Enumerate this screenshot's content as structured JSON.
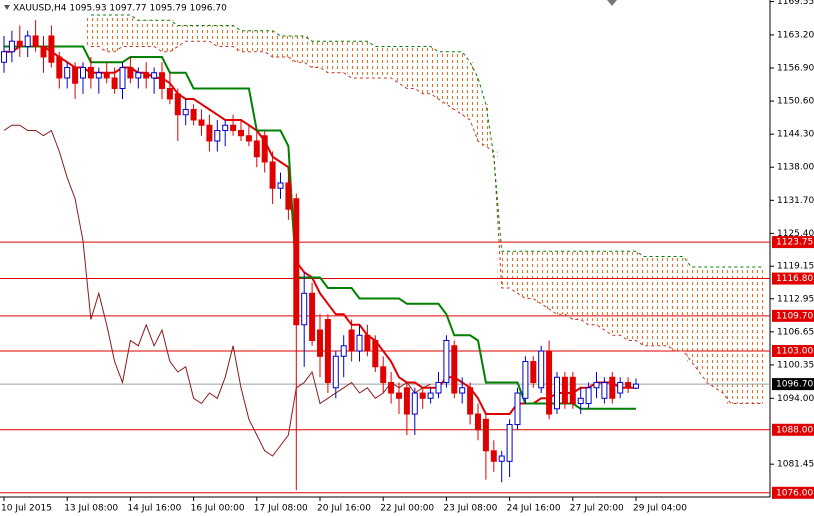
{
  "chart_data": {
    "type": "candlestick",
    "title": "XAUUSD,H4 1095.93 1097.77 1095.79 1096.70",
    "categories": [
      "10 Jul 2015",
      null,
      null,
      null,
      null,
      null,
      null,
      null,
      "13 Jul 08:00",
      null,
      null,
      null,
      null,
      null,
      null,
      null,
      "14 Jul 16:00",
      null,
      null,
      null,
      null,
      null,
      null,
      null,
      "16 Jul 00:00",
      null,
      null,
      null,
      null,
      null,
      null,
      null,
      "17 Jul 08:00",
      null,
      null,
      null,
      null,
      null,
      null,
      null,
      "20 Jul 16:00",
      null,
      null,
      null,
      null,
      null,
      null,
      null,
      "22 Jul 00:00",
      null,
      null,
      null,
      null,
      null,
      null,
      null,
      "23 Jul 08:00",
      null,
      null,
      null,
      null,
      null,
      null,
      null,
      "24 Jul 16:00",
      null,
      null,
      null,
      null,
      null,
      null,
      null,
      "27 Jul 20:00",
      null,
      null,
      null,
      null,
      null,
      null,
      null,
      "29 Jul 04:00",
      null,
      null,
      null,
      null,
      null,
      null,
      null,
      null,
      null,
      null,
      null,
      null,
      null,
      null,
      null,
      null
    ],
    "open": [
      1158,
      1160,
      1162,
      1161,
      1163,
      1161,
      1163,
      1159,
      1155,
      1157,
      1155,
      1157,
      1155,
      1156,
      1155,
      1153,
      1157,
      1155,
      1156,
      1155,
      1156,
      1153,
      1152,
      1148,
      1149,
      1147,
      1146,
      1143,
      1145,
      1146,
      1145,
      1144,
      1143,
      1144,
      1139,
      1134,
      1135,
      1132,
      1108,
      1114,
      1107,
      1109,
      1096,
      1102,
      1107,
      1103,
      1106,
      1105,
      1100,
      1097,
      1095,
      1096,
      1091,
      1095,
      1094,
      1095,
      1097,
      1104,
      1095,
      1096,
      1091,
      1090,
      1084,
      1082,
      1082,
      1089,
      1094,
      1101,
      1096,
      1103,
      1092,
      1098,
      1098,
      1093,
      1093,
      1096,
      1094,
      1098,
      1095,
      1097,
      1095.93,
      null,
      null,
      null,
      null,
      null,
      null,
      null,
      null,
      null,
      null,
      null,
      null,
      null,
      null,
      null,
      null
    ],
    "high": [
      1163,
      1164,
      1165,
      1164,
      1166,
      1163,
      1165,
      1160,
      1158,
      1158,
      1158,
      1159,
      1157,
      1158,
      1157,
      1158,
      1159,
      1157,
      1158,
      1157,
      1158,
      1156,
      1153,
      1151,
      1150,
      1149,
      1148,
      1147,
      1147,
      1148,
      1147,
      1146,
      1145,
      1145,
      1141,
      1137,
      1137,
      1133,
      1118,
      1116,
      1110,
      1110,
      1103,
      1106,
      1109,
      1108,
      1108,
      1106,
      1102,
      1099,
      1097,
      1097,
      1096,
      1096,
      1096,
      1099,
      1106,
      1105,
      1098,
      1097,
      1093,
      1091,
      1086,
      1084,
      1090,
      1096,
      1102,
      1102,
      1104,
      1105,
      1099,
      1099,
      1099,
      1096,
      1097,
      1099,
      1098,
      1099,
      1098,
      1098,
      1097.77,
      null,
      null,
      null,
      null,
      null,
      null,
      null,
      null,
      null,
      null,
      null,
      null,
      null,
      null,
      null,
      null
    ],
    "low": [
      1156,
      1158,
      1159,
      1159,
      1160,
      1156,
      1157,
      1153,
      1153,
      1151,
      1152,
      1153,
      1152,
      1154,
      1152,
      1151,
      1154,
      1153,
      1153,
      1152,
      1151,
      1150,
      1143,
      1146,
      1146,
      1144,
      1141,
      1141,
      1142,
      1144,
      1143,
      1142,
      1138,
      1137,
      1131,
      1132,
      1128,
      1076.5,
      1100,
      1104,
      1098,
      1095,
      1094,
      1098,
      1101,
      1101,
      1102,
      1099,
      1095,
      1093,
      1091,
      1087,
      1087,
      1092,
      1093,
      1094,
      1096,
      1094,
      1093,
      1089,
      1086,
      1078.5,
      1080,
      1078,
      1079,
      1088,
      1093,
      1096,
      1095,
      1090,
      1091,
      1092,
      1092,
      1091,
      1092,
      1094,
      1093,
      1093,
      1094,
      1095,
      1095.79,
      null,
      null,
      null,
      null,
      null,
      null,
      null,
      null,
      null,
      null,
      null,
      null,
      null,
      null,
      null,
      null
    ],
    "close": [
      1160,
      1162,
      1161,
      1163,
      1161,
      1159,
      1158,
      1155,
      1157,
      1154,
      1157,
      1155,
      1156,
      1155,
      1153,
      1157,
      1155,
      1156,
      1155,
      1156,
      1153,
      1151,
      1148,
      1149,
      1147,
      1146,
      1143,
      1145,
      1146,
      1145,
      1144,
      1143,
      1140,
      1139,
      1134,
      1135,
      1130,
      1108,
      1114,
      1105,
      1102,
      1097,
      1102,
      1104,
      1103,
      1106,
      1103,
      1100,
      1097,
      1095,
      1094,
      1091,
      1095,
      1094,
      1095,
      1097,
      1105,
      1095,
      1096,
      1091,
      1088,
      1084,
      1082,
      1083,
      1089,
      1095,
      1101,
      1097,
      1103,
      1091,
      1098,
      1093,
      1093,
      1094,
      1096,
      1097,
      1097,
      1094,
      1097,
      1096,
      1096.7,
      null,
      null,
      null,
      null,
      null,
      null,
      null,
      null,
      null,
      null,
      null,
      null,
      null,
      null,
      null,
      null
    ],
    "up_color": "#0000cd",
    "down_color": "#e00000",
    "lines": [
      {
        "color": "#e00000",
        "width": 2,
        "dash": false,
        "values": [
          1160,
          1160,
          1161,
          1161,
          1161,
          1161,
          1160,
          1159,
          1158,
          1157,
          1157,
          1156,
          1156,
          1156,
          1156,
          1157,
          1157,
          1156,
          1156,
          1155,
          1155,
          1154,
          1152,
          1151,
          1151,
          1150,
          1149,
          1148,
          1147,
          1147,
          1147,
          1146,
          1145,
          1143,
          1140,
          1139,
          1138,
          1120,
          1118,
          1117,
          1114,
          1112,
          1110,
          1110,
          1108,
          1108,
          1106,
          1105,
          1103,
          1101,
          1098,
          1097,
          1097,
          1096,
          1096,
          1096,
          1098,
          1098,
          1097,
          1096,
          1094,
          1091,
          1091,
          1091,
          1091,
          1093,
          1093,
          1093,
          1094,
          1094,
          1095,
          1095,
          1095,
          1096,
          1096,
          1097,
          1097,
          1097,
          1096,
          1096,
          1096,
          null,
          null,
          null,
          null,
          null,
          null,
          null,
          null,
          null,
          null,
          null,
          null,
          null,
          null,
          null,
          null
        ]
      },
      {
        "color": "#008000",
        "width": 2,
        "dash": false,
        "values": [
          1161,
          1161,
          1161,
          1161,
          1161,
          1161,
          1161,
          1161,
          1161,
          1161,
          1161,
          1158,
          1158,
          1158,
          1158,
          1158,
          1159,
          1159,
          1159,
          1159,
          1159,
          1156,
          1156,
          1156,
          1153,
          1153,
          1153,
          1153,
          1153,
          1153,
          1153,
          1153,
          1145,
          1145,
          1145,
          1145,
          1142,
          1117,
          1117,
          1117,
          1117,
          1115,
          1115,
          1115,
          1115,
          1113,
          1113,
          1113,
          1113,
          1113,
          1113,
          1112,
          1112,
          1112,
          1112,
          1112,
          1110,
          1106,
          1106,
          1106,
          1105,
          1097,
          1097,
          1097,
          1097,
          1097,
          1093,
          1093,
          1093,
          1093,
          1093,
          1093,
          1093,
          1092,
          1092,
          1092,
          1092,
          1092,
          1092,
          1092,
          1092,
          null,
          null,
          null,
          null,
          null,
          null,
          null,
          null,
          null,
          null,
          null,
          null,
          null,
          null,
          null,
          null
        ]
      },
      {
        "color": "#8b1a1a",
        "width": 1,
        "dash": false,
        "values": [
          1145,
          1146,
          1146,
          1145,
          1145,
          1144,
          1145,
          1141,
          1136,
          1132,
          1124,
          1109,
          1114,
          1108,
          1101,
          1097,
          1105,
          1104,
          1108,
          1104,
          1107,
          1101,
          1099,
          1100,
          1094,
          1093,
          1095,
          1094,
          1098,
          1104,
          1096,
          1090,
          1087,
          1084,
          1083,
          1085,
          1087,
          1096,
          1097,
          1099,
          1093,
          1094,
          1095,
          1096,
          1097,
          1095,
          1096,
          1094,
          1095,
          1097,
          1096,
          1097,
          1095,
          1096,
          1096.7,
          null,
          null,
          null,
          null,
          null,
          null,
          null,
          null,
          null,
          null,
          null,
          null,
          null,
          null,
          null,
          null,
          null,
          null,
          null,
          null,
          null,
          null,
          null,
          null,
          null,
          null,
          null,
          null,
          null,
          null,
          null,
          null,
          null,
          null,
          null,
          null,
          null
        ]
      },
      {
        "color": "#c0392b",
        "width": 1,
        "dash": true,
        "values": [
          null,
          null,
          null,
          null,
          null,
          null,
          null,
          null,
          null,
          null,
          null,
          1161,
          1161,
          1160,
          1160,
          1161,
          1161,
          1161,
          1161,
          1161,
          1160,
          1160,
          1161,
          1162,
          1162,
          1162,
          1162,
          1161,
          1161,
          1161,
          1160,
          1160,
          1160,
          1160,
          1159,
          1159,
          1159,
          1158,
          1158,
          1157,
          1157,
          1156,
          1156,
          1156,
          1155,
          1155,
          1155,
          1155,
          1155,
          1155,
          1154,
          1153,
          1153,
          1152,
          1152,
          1151,
          1150,
          1149,
          1148,
          1147,
          1143,
          1142,
          1141,
          1115,
          1115,
          1114,
          1113,
          1113,
          1112,
          1111,
          1110,
          1110,
          1109,
          1109,
          1108,
          1108,
          1107,
          1106,
          1106,
          1105,
          1105,
          1104,
          1104,
          1104,
          1104,
          1103,
          1103,
          1101,
          1099,
          1097,
          1096,
          1095,
          1093,
          1093,
          1093,
          1093,
          1093
        ]
      },
      {
        "color": "#008000",
        "width": 1,
        "dash": true,
        "values": [
          null,
          null,
          null,
          null,
          null,
          null,
          null,
          null,
          null,
          null,
          null,
          1167,
          1167,
          1167,
          1167,
          1167,
          1167,
          1166,
          1166,
          1166,
          1166,
          1166,
          1165,
          1165,
          1165,
          1165,
          1165,
          1165,
          1165,
          1165,
          1164,
          1164,
          1164,
          1164,
          1164,
          1163,
          1163,
          1163,
          1163,
          1162,
          1162,
          1162,
          1162,
          1162,
          1162,
          1162,
          1162,
          1161,
          1161,
          1161,
          1161,
          1161,
          1161,
          1161,
          1161,
          1160,
          1160,
          1160,
          1160,
          1158,
          1155,
          1150,
          1140,
          1122,
          1122,
          1122,
          1122,
          1122,
          1122,
          1122,
          1122,
          1122,
          1122,
          1122,
          1122,
          1122,
          1122,
          1122,
          1122,
          1122,
          1122,
          1121,
          1121,
          1121,
          1121,
          1121,
          1121,
          1119,
          1119,
          1119,
          1119,
          1119,
          1119,
          1119,
          1119,
          1119,
          1119
        ]
      }
    ],
    "cloud_color": "#f26b1d",
    "levels": [
      1123.75,
      {
        "value": 1116.8,
        "label": "1116.80"
      },
      {
        "value": 1109.7,
        "label": "1109.70"
      },
      {
        "value": 1103.0,
        "label": "1103.00"
      },
      {
        "value": 1088.0,
        "label": "1088.00"
      },
      {
        "value": 1076.0,
        "label": "1076.00"
      }
    ],
    "level_color": "#e00000",
    "last": {
      "value": 1096.7,
      "label": "1096.70"
    },
    "ylim": [
      1075.2,
      1169.85
    ],
    "yticks": [
      1169.55,
      {
        "value": 1163.2,
        "label": "1163.20"
      },
      {
        "value": 1156.9,
        "label": "1156.90"
      },
      {
        "value": 1150.6,
        "label": "1150.60"
      },
      {
        "value": 1144.3,
        "label": "1144.30"
      },
      {
        "value": 1138.0,
        "label": "1138.00"
      },
      {
        "value": 1131.7,
        "label": "1131.70"
      },
      {
        "value": 1125.4,
        "label": "1125.40"
      },
      1119.15,
      1112.95,
      1106.65,
      1100.35,
      {
        "value": 1094.0,
        "label": "1094.00"
      },
      1081.45
    ],
    "grid": false
  }
}
